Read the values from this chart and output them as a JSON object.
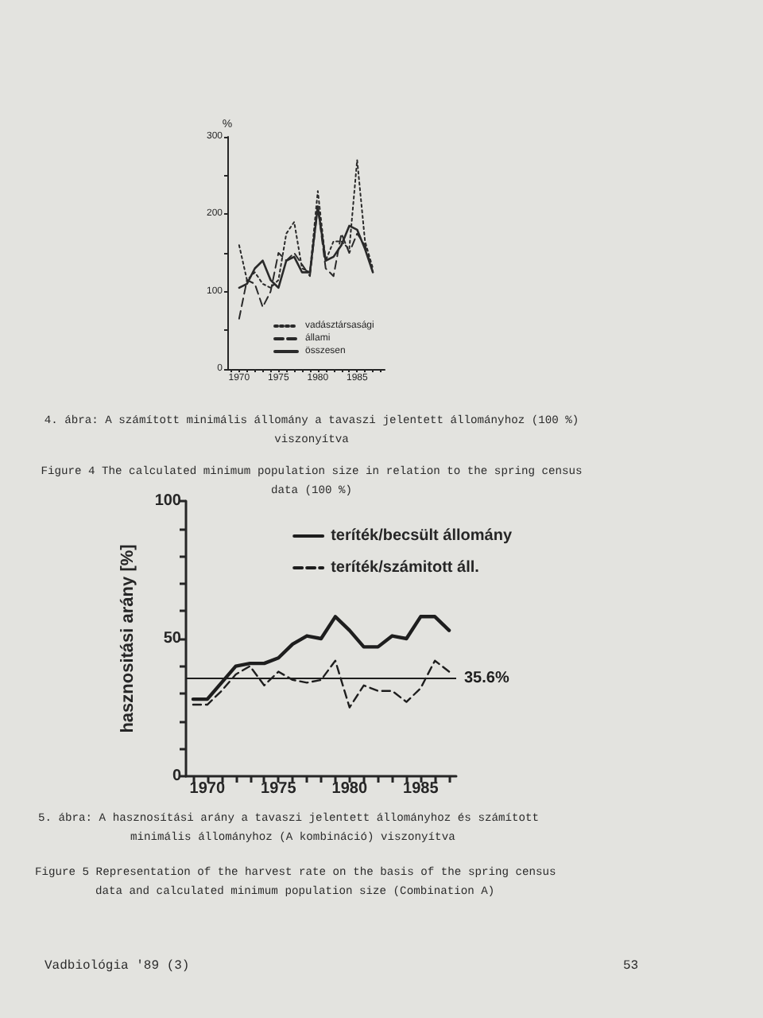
{
  "chart_data": [
    {
      "type": "line",
      "ylabel": "%",
      "x": [
        1970,
        1971,
        1972,
        1973,
        1974,
        1975,
        1976,
        1977,
        1978,
        1979,
        1980,
        1981,
        1982,
        1983,
        1984,
        1985,
        1986,
        1987
      ],
      "series": [
        {
          "name": "vadásztársasági",
          "color": "#2a2a2a",
          "line_style": "dotted",
          "values": [
            160,
            115,
            125,
            110,
            105,
            115,
            175,
            190,
            130,
            125,
            230,
            140,
            165,
            165,
            155,
            270,
            165,
            130
          ]
        },
        {
          "name": "állami",
          "color": "#2a2a2a",
          "line_style": "dashed",
          "values": [
            65,
            115,
            110,
            80,
            100,
            150,
            140,
            150,
            135,
            120,
            210,
            130,
            120,
            175,
            150,
            175,
            160,
            125
          ]
        },
        {
          "name": "összesen",
          "color": "#2a2a2a",
          "line_style": "solid",
          "values": [
            105,
            110,
            130,
            140,
            115,
            105,
            140,
            145,
            125,
            125,
            210,
            140,
            145,
            160,
            185,
            180,
            155,
            125
          ]
        }
      ],
      "xlim": [
        1968.5,
        1988.5
      ],
      "xticks": [
        {
          "value": 1969,
          "label": null
        },
        1970,
        {
          "value": 1971,
          "label": null
        },
        {
          "value": 1972,
          "label": null
        },
        {
          "value": 1973,
          "label": null
        },
        {
          "value": 1974,
          "label": null
        },
        1975,
        {
          "value": 1976,
          "label": null
        },
        {
          "value": 1977,
          "label": null
        },
        {
          "value": 1978,
          "label": null
        },
        {
          "value": 1979,
          "label": null
        },
        1980,
        {
          "value": 1981,
          "label": null
        },
        {
          "value": 1982,
          "label": null
        },
        {
          "value": 1983,
          "label": null
        },
        {
          "value": 1984,
          "label": null
        },
        1985,
        {
          "value": 1986,
          "label": null
        },
        {
          "value": 1987,
          "label": null
        },
        {
          "value": 1988,
          "label": null
        }
      ],
      "ylim": [
        0,
        300
      ],
      "yticks": [
        0,
        {
          "value": 50,
          "label": null
        },
        100,
        {
          "value": 150,
          "label": null
        },
        200,
        {
          "value": 250,
          "label": null
        },
        300
      ],
      "legend": "bottom",
      "marker": "none",
      "grid": false,
      "annotations": [
        "4. ábra: A számított minimális állomány a tavaszi jelentett állományhoz (100 %) viszonyítva",
        "Figure 4 The calculated minimum population size in relation to the spring census data (100 %)"
      ]
    },
    {
      "type": "line",
      "ylabel": "hasznositási arány [%]",
      "x": [
        1969,
        1970,
        1971,
        1972,
        1973,
        1974,
        1975,
        1976,
        1977,
        1978,
        1979,
        1980,
        1981,
        1982,
        1983,
        1984,
        1985,
        1986,
        1987
      ],
      "series": [
        {
          "name": "teríték/becsült állomány",
          "color": "#1e1e1e",
          "line_style": "solid",
          "values": [
            28,
            28,
            34,
            40,
            41,
            41,
            43,
            48,
            51,
            50,
            58,
            53,
            47,
            47,
            51,
            50,
            58,
            58,
            53
          ]
        },
        {
          "name": "teríték/számitott áll.",
          "color": "#1e1e1e",
          "line_style": "dashed",
          "values": [
            26,
            26,
            31,
            37,
            40,
            33,
            38,
            35,
            34,
            35,
            42,
            25,
            33,
            31,
            31,
            27,
            32,
            42,
            38
          ]
        }
      ],
      "xlim": [
        1968.5,
        1987.5
      ],
      "xticks": [
        {
          "value": 1969,
          "label": null
        },
        1970,
        {
          "value": 1971,
          "label": null
        },
        {
          "value": 1972,
          "label": null
        },
        {
          "value": 1973,
          "label": null
        },
        {
          "value": 1974,
          "label": null
        },
        1975,
        {
          "value": 1976,
          "label": null
        },
        {
          "value": 1977,
          "label": null
        },
        {
          "value": 1978,
          "label": null
        },
        {
          "value": 1979,
          "label": null
        },
        1980,
        {
          "value": 1981,
          "label": null
        },
        {
          "value": 1982,
          "label": null
        },
        {
          "value": 1983,
          "label": null
        },
        {
          "value": 1984,
          "label": null
        },
        1985,
        {
          "value": 1986,
          "label": null
        },
        {
          "value": 1987,
          "label": null
        }
      ],
      "ylim": [
        0,
        100
      ],
      "yticks": [
        0,
        {
          "value": 10,
          "label": null
        },
        {
          "value": 20,
          "label": null
        },
        {
          "value": 30,
          "label": null
        },
        {
          "value": 40,
          "label": null
        },
        50,
        {
          "value": 60,
          "label": null
        },
        {
          "value": 70,
          "label": null
        },
        {
          "value": 80,
          "label": null
        },
        {
          "value": 90,
          "label": null
        },
        100
      ],
      "ref_lines": [
        {
          "axis": "y",
          "value": 35.6,
          "label": "35.6%",
          "color": "#1e1e1e"
        }
      ],
      "legend": "top right",
      "marker": "none",
      "grid": false,
      "annotations": [
        "5. ábra: A hasznosítási arány a tavaszi jelentett állományhoz és számított minimális állományhoz (A kombináció) viszonyítva",
        "Figure 5 Representation of the harvest rate on the basis of the spring census data and calculated minimum population size (Combination A)",
        "Vadbiológia '89 (3)",
        "53"
      ]
    }
  ]
}
